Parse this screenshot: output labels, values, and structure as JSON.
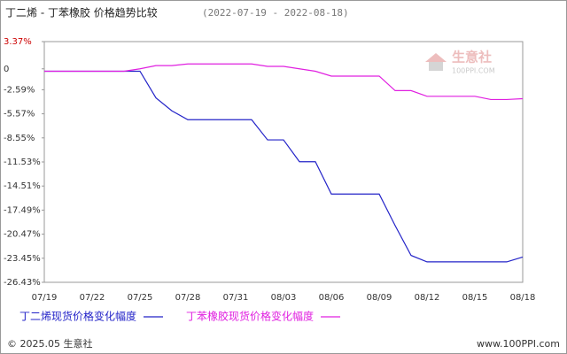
{
  "chart_data": {
    "type": "line",
    "title": "丁二烯 - 丁苯橡胶 价格趋势比较",
    "subtitle": "(2022-07-19 - 2022-08-18)",
    "categories": [
      "07/19",
      null,
      null,
      "07/22",
      null,
      null,
      "07/25",
      null,
      null,
      "07/28",
      null,
      null,
      "07/31",
      null,
      null,
      "08/03",
      null,
      null,
      "08/06",
      null,
      null,
      "08/09",
      null,
      null,
      "08/12",
      null,
      null,
      "08/15",
      null,
      null,
      "08/18"
    ],
    "series": [
      {
        "name": "丁二烯现货价格变化幅度",
        "color": "#2323c8",
        "values": [
          -0.3,
          -0.3,
          -0.3,
          -0.3,
          -0.3,
          -0.3,
          -0.3,
          -3.6,
          -5.2,
          -6.3,
          -6.3,
          -6.3,
          -6.3,
          -6.3,
          -8.8,
          -8.8,
          -11.5,
          -11.5,
          -15.5,
          -15.5,
          -15.5,
          -15.5,
          -19.4,
          -23.1,
          -23.9,
          -23.9,
          -23.9,
          -23.9,
          -23.9,
          -23.9,
          -23.3
        ]
      },
      {
        "name": "丁苯橡胶现货价格变化幅度",
        "color": "#e020e0",
        "values": [
          -0.3,
          -0.3,
          -0.3,
          -0.3,
          -0.3,
          -0.3,
          0,
          0.4,
          0.4,
          0.6,
          0.6,
          0.6,
          0.6,
          0.6,
          0.3,
          0.3,
          0,
          -0.3,
          -0.9,
          -0.9,
          -0.9,
          -0.9,
          -2.7,
          -2.7,
          -3.4,
          -3.4,
          -3.4,
          -3.4,
          -3.8,
          -3.8,
          -3.7
        ]
      }
    ],
    "ylim": [
      -26.43,
      3.37
    ],
    "yticks": [
      {
        "value": 3.37,
        "label": "3.37%"
      },
      0,
      {
        "value": -2.59,
        "label": "-2.59%"
      },
      {
        "value": -5.57,
        "label": "-5.57%"
      },
      {
        "value": -8.55,
        "label": "-8.55%"
      },
      {
        "value": -11.53,
        "label": "-11.53%"
      },
      {
        "value": -14.51,
        "label": "-14.51%"
      },
      {
        "value": -17.49,
        "label": "-17.49%"
      },
      {
        "value": -20.47,
        "label": "-20.47%"
      },
      {
        "value": -23.45,
        "label": "-23.45%"
      },
      {
        "value": -26.43,
        "label": "-26.43%"
      }
    ],
    "grid": false
  },
  "watermark": {
    "name": "生意社",
    "site": "100PPI.COM"
  },
  "footer": {
    "copyright": "© 2025.05 生意社",
    "site": "www.100PPI.com"
  }
}
